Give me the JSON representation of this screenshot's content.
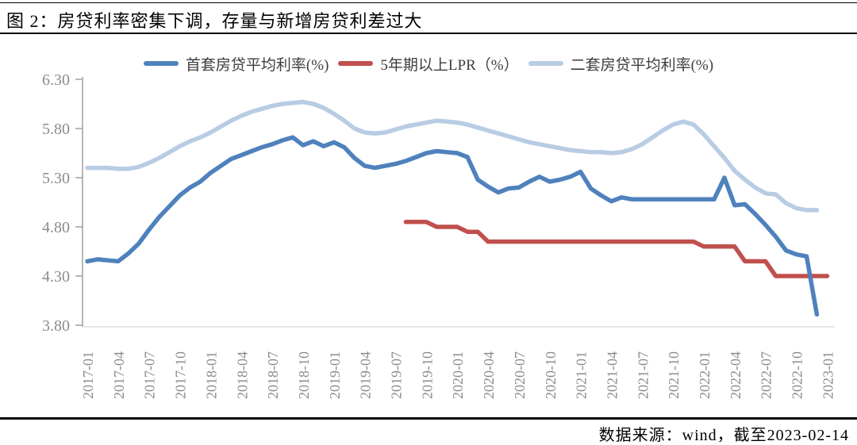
{
  "header": {
    "title": "图 2：房贷利率密集下调，存量与新增房贷利差过大"
  },
  "footer": {
    "source": "数据来源：wind，截至2023-02-14"
  },
  "chart_data": {
    "type": "line",
    "title": "房贷利率密集下调，存量与新增房贷利差过大",
    "xlabel": "",
    "ylabel": "利率(%)",
    "ylim": [
      3.8,
      6.3
    ],
    "y_tick_values": [
      6.3,
      5.8,
      5.3,
      4.8,
      4.3,
      3.8
    ],
    "y_tick_labels": [
      "6.30",
      "5.80",
      "5.30",
      "4.80",
      "4.30",
      "3.80"
    ],
    "x_monthly_start": "2017-01",
    "x_tick_labels": [
      "2017-01",
      "2017-04",
      "2017-07",
      "2017-10",
      "2018-01",
      "2018-04",
      "2018-07",
      "2018-10",
      "2019-01",
      "2019-04",
      "2019-07",
      "2019-10",
      "2020-01",
      "2020-04",
      "2020-07",
      "2020-10",
      "2021-01",
      "2021-04",
      "2021-07",
      "2021-10",
      "2022-01",
      "2022-04",
      "2022-07",
      "2022-10",
      "2023-01"
    ],
    "grid": false,
    "legend_position": "top",
    "axis_color": "#9a9a9a",
    "baseline_color": "#dcdcdc",
    "series": [
      {
        "name": "首套房贷平均利率(%)",
        "color": "#4f81bd",
        "start_index": 0,
        "values": [
          4.45,
          4.47,
          4.46,
          4.45,
          4.53,
          4.63,
          4.77,
          4.9,
          5.01,
          5.12,
          5.2,
          5.26,
          5.35,
          5.42,
          5.49,
          5.53,
          5.57,
          5.61,
          5.64,
          5.68,
          5.71,
          5.63,
          5.67,
          5.62,
          5.66,
          5.61,
          5.5,
          5.42,
          5.4,
          5.42,
          5.44,
          5.47,
          5.51,
          5.55,
          5.57,
          5.56,
          5.55,
          5.51,
          5.28,
          5.21,
          5.15,
          5.19,
          5.2,
          5.26,
          5.31,
          5.26,
          5.28,
          5.31,
          5.36,
          5.19,
          5.12,
          5.06,
          5.1,
          5.08,
          5.08,
          5.08,
          5.08,
          5.08,
          5.08,
          5.08,
          5.08,
          5.08,
          5.3,
          5.02,
          5.03,
          4.93,
          4.82,
          4.7,
          4.56,
          4.52,
          4.5,
          3.91
        ]
      },
      {
        "name": "5年期以上LPR（%）",
        "color": "#c0504d",
        "start_index": 31,
        "values": [
          4.85,
          4.85,
          4.85,
          4.8,
          4.8,
          4.8,
          4.75,
          4.75,
          4.65,
          4.65,
          4.65,
          4.65,
          4.65,
          4.65,
          4.65,
          4.65,
          4.65,
          4.65,
          4.65,
          4.65,
          4.65,
          4.65,
          4.65,
          4.65,
          4.65,
          4.65,
          4.65,
          4.65,
          4.65,
          4.6,
          4.6,
          4.6,
          4.6,
          4.45,
          4.45,
          4.45,
          4.3,
          4.3,
          4.3,
          4.3,
          4.3,
          4.3
        ]
      },
      {
        "name": "二套房贷平均利率(%)",
        "color": "#b8cce4",
        "start_index": 0,
        "values": [
          5.4,
          5.4,
          5.4,
          5.39,
          5.39,
          5.41,
          5.45,
          5.5,
          5.56,
          5.62,
          5.67,
          5.71,
          5.76,
          5.82,
          5.88,
          5.93,
          5.97,
          6.0,
          6.03,
          6.05,
          6.06,
          6.07,
          6.05,
          6.01,
          5.95,
          5.88,
          5.8,
          5.76,
          5.75,
          5.76,
          5.79,
          5.82,
          5.84,
          5.86,
          5.88,
          5.87,
          5.86,
          5.84,
          5.81,
          5.78,
          5.75,
          5.72,
          5.69,
          5.66,
          5.64,
          5.62,
          5.6,
          5.58,
          5.57,
          5.56,
          5.56,
          5.55,
          5.56,
          5.59,
          5.64,
          5.71,
          5.78,
          5.84,
          5.87,
          5.84,
          5.74,
          5.62,
          5.5,
          5.37,
          5.28,
          5.2,
          5.14,
          5.13,
          5.04,
          4.99,
          4.97,
          4.97
        ]
      }
    ]
  }
}
